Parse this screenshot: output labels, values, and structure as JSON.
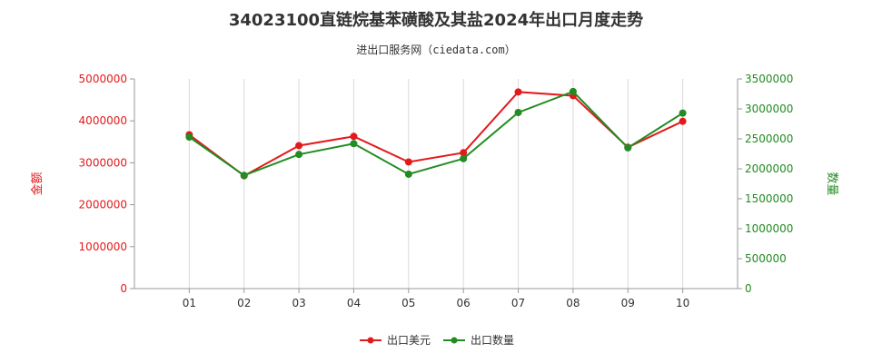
{
  "chart_data": {
    "type": "line",
    "title": "34023100直链烷基苯磺酸及其盐2024年出口月度走势",
    "subtitle": "进出口服务网（ciedata.com）",
    "categories": [
      "01",
      "02",
      "03",
      "04",
      "05",
      "06",
      "07",
      "08",
      "09",
      "10"
    ],
    "y_left": {
      "label": "金额",
      "ticks": [
        "0",
        "1000000",
        "2000000",
        "3000000",
        "4000000",
        "5000000"
      ],
      "lim": [
        0,
        5000000
      ],
      "color": "#e31a1c"
    },
    "y_right": {
      "label": "数量",
      "ticks": [
        "0",
        "500000",
        "1000000",
        "1500000",
        "2000000",
        "2500000",
        "3000000",
        "3500000"
      ],
      "lim": [
        0,
        3500000
      ],
      "color": "#228b22"
    },
    "series": [
      {
        "name": "出口美元",
        "axis": "left",
        "color": "#e31a1c",
        "values": [
          3670000,
          2690000,
          3410000,
          3630000,
          3020000,
          3240000,
          4690000,
          4600000,
          3370000,
          3990000
        ]
      },
      {
        "name": "出口数量",
        "axis": "right",
        "color": "#228b22",
        "values": [
          2530000,
          1890000,
          2240000,
          2420000,
          1910000,
          2170000,
          2940000,
          3290000,
          2350000,
          2930000
        ]
      }
    ],
    "grid": "vertical",
    "legend": "bottom-center"
  }
}
